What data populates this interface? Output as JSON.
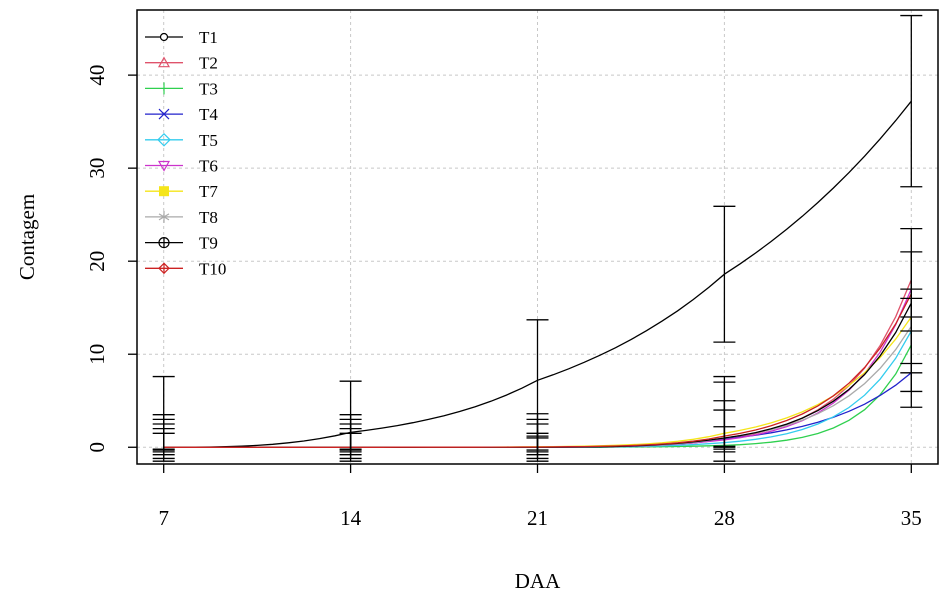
{
  "chart_data": {
    "type": "line",
    "xlabel": "DAA",
    "ylabel": "Contagem",
    "x_ticks": [
      "7",
      "14",
      "21",
      "28",
      "35"
    ],
    "y_ticks": [
      "0",
      "10",
      "20",
      "30",
      "40"
    ],
    "xlim": [
      6,
      36
    ],
    "ylim": [
      -1.8,
      47
    ],
    "grid": true,
    "legend_position": "top-left",
    "series": [
      {
        "name": "T1",
        "color": "#000000",
        "marker": "circle-open",
        "x": [
          7,
          14,
          21,
          28,
          35
        ],
        "y": [
          0.0,
          1.6,
          7.2,
          18.6,
          37.2
        ]
      },
      {
        "name": "T2",
        "color": "#df536b",
        "marker": "triangle-up",
        "x": [
          7,
          14,
          21,
          28,
          35
        ],
        "y": [
          0.0,
          0.0,
          0.02,
          0.9,
          18.0
        ]
      },
      {
        "name": "T3",
        "color": "#2fd04f",
        "marker": "plus",
        "x": [
          7,
          14,
          21,
          28,
          35
        ],
        "y": [
          0.0,
          0.0,
          0.0,
          0.2,
          11.0
        ]
      },
      {
        "name": "T4",
        "color": "#2222cc",
        "marker": "cross",
        "x": [
          7,
          14,
          21,
          28,
          35
        ],
        "y": [
          0.0,
          0.0,
          0.02,
          0.9,
          8.0
        ]
      },
      {
        "name": "T5",
        "color": "#33ccee",
        "marker": "diamond-open",
        "x": [
          7,
          14,
          21,
          28,
          35
        ],
        "y": [
          0.0,
          0.0,
          0.0,
          0.5,
          12.5
        ]
      },
      {
        "name": "T6",
        "color": "#cc33cc",
        "marker": "triangle-down",
        "x": [
          7,
          14,
          21,
          28,
          35
        ],
        "y": [
          0.0,
          0.0,
          0.01,
          0.8,
          17.0
        ]
      },
      {
        "name": "T7",
        "color": "#f5e51a",
        "marker": "square",
        "x": [
          7,
          14,
          21,
          28,
          35
        ],
        "y": [
          0.0,
          0.0,
          0.05,
          1.5,
          14.0
        ]
      },
      {
        "name": "T8",
        "color": "#aaaaaa",
        "marker": "asterisk",
        "x": [
          7,
          14,
          21,
          28,
          35
        ],
        "y": [
          0.0,
          0.0,
          0.02,
          1.0,
          13.0
        ]
      },
      {
        "name": "T9",
        "color": "#000000",
        "marker": "circle-plus",
        "x": [
          7,
          14,
          21,
          28,
          35
        ],
        "y": [
          0.0,
          0.0,
          0.01,
          1.0,
          15.5
        ]
      },
      {
        "name": "T10",
        "color": "#cc2222",
        "marker": "diamond-plus",
        "x": [
          7,
          14,
          21,
          28,
          35
        ],
        "y": [
          0.0,
          0.0,
          0.03,
          1.2,
          16.5
        ]
      }
    ],
    "error_bars": [
      {
        "x": 7,
        "low": -1.5,
        "high": 7.6
      },
      {
        "x": 7,
        "low": -1.2,
        "high": 3.5
      },
      {
        "x": 7,
        "low": -0.8,
        "high": 3.0
      },
      {
        "x": 7,
        "low": -0.5,
        "high": 2.5
      },
      {
        "x": 7,
        "low": -0.3,
        "high": 2.0
      },
      {
        "x": 7,
        "low": -0.2,
        "high": 1.5
      },
      {
        "x": 14,
        "low": -1.5,
        "high": 7.1
      },
      {
        "x": 14,
        "low": -1.2,
        "high": 3.5
      },
      {
        "x": 14,
        "low": -0.8,
        "high": 3.0
      },
      {
        "x": 14,
        "low": -0.5,
        "high": 2.5
      },
      {
        "x": 14,
        "low": -0.3,
        "high": 2.0
      },
      {
        "x": 14,
        "low": -0.2,
        "high": 1.5
      },
      {
        "x": 21,
        "low": 1.0,
        "high": 13.7
      },
      {
        "x": 21,
        "low": -1.5,
        "high": 3.6
      },
      {
        "x": 21,
        "low": -1.2,
        "high": 3.0
      },
      {
        "x": 21,
        "low": -0.8,
        "high": 2.5
      },
      {
        "x": 21,
        "low": -0.5,
        "high": 1.5
      },
      {
        "x": 21,
        "low": -0.3,
        "high": 1.2
      },
      {
        "x": 28,
        "low": 11.3,
        "high": 25.9
      },
      {
        "x": 28,
        "low": -1.5,
        "high": 7.6
      },
      {
        "x": 28,
        "low": -0.5,
        "high": 7.0
      },
      {
        "x": 28,
        "low": -0.2,
        "high": 5.0
      },
      {
        "x": 28,
        "low": 0.0,
        "high": 4.0
      },
      {
        "x": 28,
        "low": 0.1,
        "high": 2.2
      },
      {
        "x": 35,
        "low": 28.0,
        "high": 46.4
      },
      {
        "x": 35,
        "low": 12.5,
        "high": 23.5
      },
      {
        "x": 35,
        "low": 9.0,
        "high": 21.0
      },
      {
        "x": 35,
        "low": 8.0,
        "high": 17.0
      },
      {
        "x": 35,
        "low": 4.3,
        "high": 16.0
      },
      {
        "x": 35,
        "low": 6.0,
        "high": 14.0
      }
    ]
  }
}
